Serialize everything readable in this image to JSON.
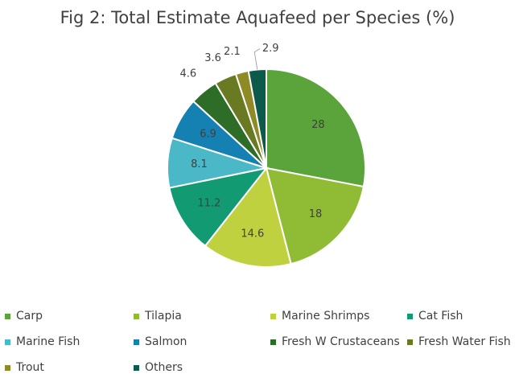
{
  "chart_data": {
    "type": "pie",
    "title": "Fig 2: Total Estimate Aquafeed per Species (%)",
    "categories": [
      "Carp",
      "Tilapia",
      "Marine Shrimps",
      "Cat Fish",
      "Marine Fish",
      "Salmon",
      "Fresh W Crustaceans",
      "Fresh Water Fish",
      "Trout",
      "Others"
    ],
    "values": [
      28,
      18,
      14.6,
      11.2,
      8.1,
      6.9,
      4.6,
      3.6,
      2.1,
      2.9
    ],
    "labels": [
      "28",
      "18",
      "14.6",
      "11.2",
      "8.1",
      "6.9",
      "4.6",
      "3.6",
      "2.1",
      "2.9"
    ],
    "colors": [
      "#5ba33b",
      "#8fbc34",
      "#bfd13f",
      "#129b72",
      "#4bb8c8",
      "#1481b2",
      "#2e6d28",
      "#6a7a22",
      "#8e8a26",
      "#0b5a4a"
    ],
    "legend_position": "bottom",
    "start": "top, clockwise"
  }
}
